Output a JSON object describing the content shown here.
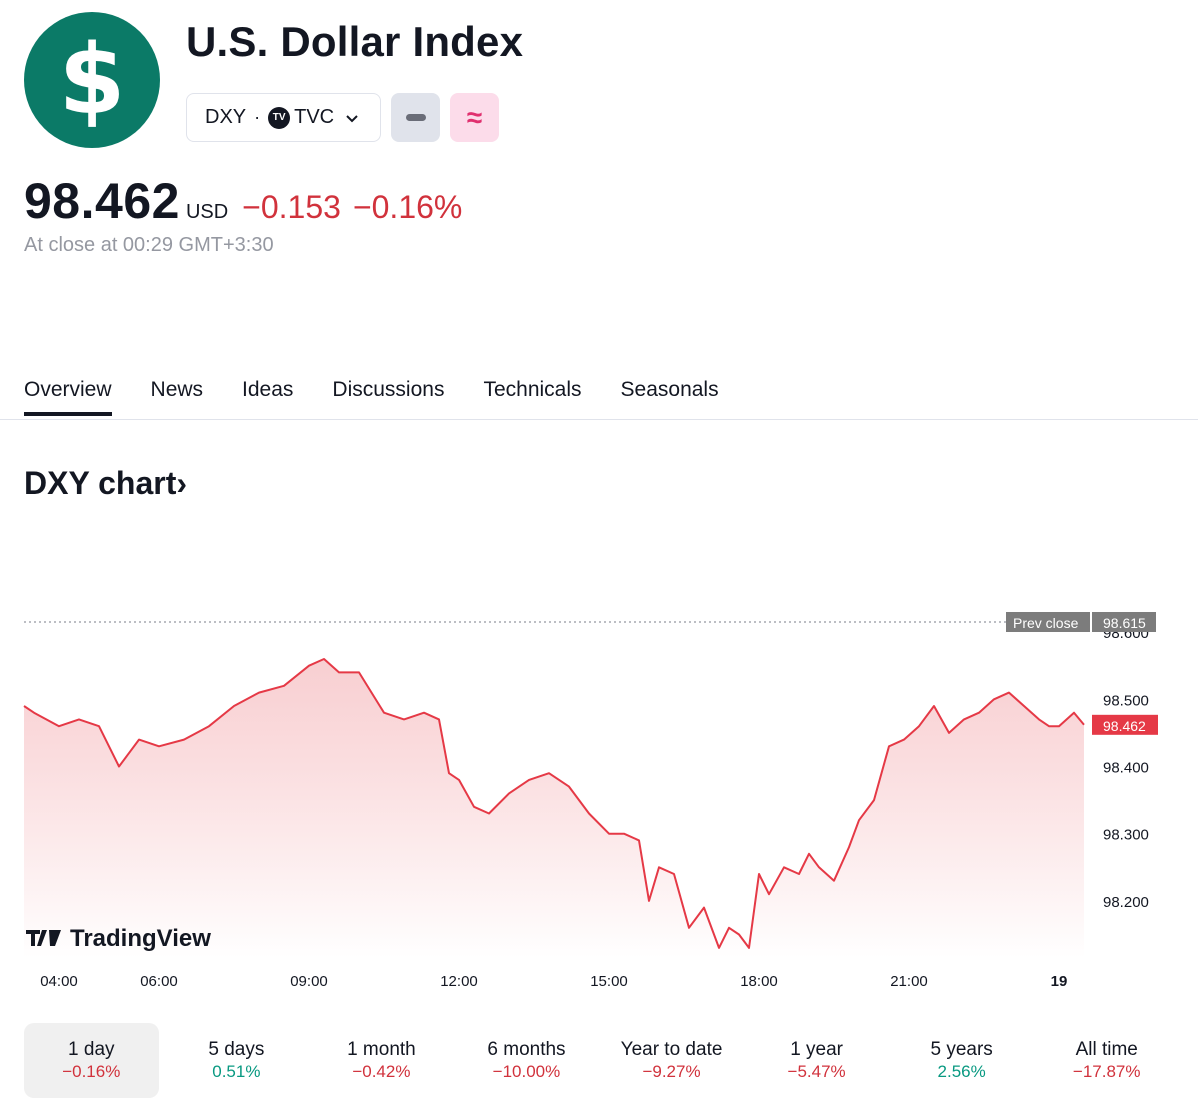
{
  "header": {
    "logo_symbol": "$",
    "logo_color": "#0b7a67",
    "title": "U.S. Dollar Index",
    "symbol": "DXY",
    "separator": "·",
    "exchange_badge": "TV",
    "exchange": "TVC",
    "dropdown_icon": "chevron-down-icon",
    "badge_grey_icon": "minus-icon",
    "badge_pink_icon": "approx-icon",
    "badge_pink_glyph": "≈"
  },
  "quote": {
    "price": "98.462",
    "currency": "USD",
    "change": "−0.153",
    "change_percent": "−0.16%",
    "close_note": "At close at 00:29 GMT+3:30"
  },
  "tabs": [
    "Overview",
    "News",
    "Ideas",
    "Discussions",
    "Technicals",
    "Seasonals"
  ],
  "active_tab": "Overview",
  "chart_heading": "DXY chart",
  "chart_heading_arrow": "›",
  "watermark": "TradingView",
  "colors": {
    "negative": "#d1323c",
    "positive": "#089981",
    "line": "#e53946",
    "fill_top": "#f7c6c9",
    "fill_bottom": "#ffffff"
  },
  "chart_data": {
    "type": "area",
    "title": "DXY chart",
    "xlabel": "",
    "ylabel": "",
    "x_ticks": [
      "04:00",
      "06:00",
      "09:00",
      "12:00",
      "15:00",
      "18:00",
      "21:00",
      "19"
    ],
    "y_ticks": [
      98.2,
      98.3,
      98.4,
      98.5,
      98.6
    ],
    "y_tick_labels": [
      "98.200",
      "98.300",
      "98.400",
      "98.500",
      "98.600"
    ],
    "ylim": [
      98.115,
      98.615
    ],
    "prev_close": {
      "label": "Prev close",
      "value": "98.615"
    },
    "last_value": "98.462",
    "x_hours": [
      3.3,
      3.5,
      4.0,
      4.4,
      4.8,
      5.2,
      5.6,
      6.0,
      6.5,
      7.0,
      7.5,
      8.0,
      8.5,
      9.0,
      9.3,
      9.6,
      10.0,
      10.5,
      10.9,
      11.3,
      11.6,
      11.8,
      12.0,
      12.3,
      12.6,
      13.0,
      13.4,
      13.8,
      14.2,
      14.6,
      15.0,
      15.3,
      15.6,
      15.8,
      16.0,
      16.3,
      16.6,
      16.9,
      17.2,
      17.4,
      17.6,
      17.8,
      18.0,
      18.2,
      18.5,
      18.8,
      19.0,
      19.2,
      19.5,
      19.8,
      20.0,
      20.3,
      20.6,
      20.9,
      21.2,
      21.5,
      21.8,
      22.1,
      22.4,
      22.7,
      23.0,
      23.3,
      23.6,
      23.8,
      24.0,
      24.3,
      24.5
    ],
    "values": [
      98.49,
      98.48,
      98.46,
      98.47,
      98.46,
      98.4,
      98.44,
      98.43,
      98.44,
      98.46,
      98.49,
      98.51,
      98.52,
      98.55,
      98.56,
      98.54,
      98.54,
      98.48,
      98.47,
      98.48,
      98.47,
      98.39,
      98.38,
      98.34,
      98.33,
      98.36,
      98.38,
      98.39,
      98.37,
      98.33,
      98.3,
      98.3,
      98.29,
      98.2,
      98.25,
      98.24,
      98.16,
      98.19,
      98.13,
      98.16,
      98.15,
      98.13,
      98.24,
      98.21,
      98.25,
      98.24,
      98.27,
      98.25,
      98.23,
      98.28,
      98.32,
      98.35,
      98.43,
      98.44,
      98.46,
      98.49,
      98.45,
      98.47,
      98.48,
      98.5,
      98.51,
      98.49,
      98.47,
      98.46,
      98.46,
      98.48,
      98.462
    ]
  },
  "ranges": [
    {
      "label": "1 day",
      "value": "−0.16%",
      "dir": "neg"
    },
    {
      "label": "5 days",
      "value": "0.51%",
      "dir": "pos"
    },
    {
      "label": "1 month",
      "value": "−0.42%",
      "dir": "neg"
    },
    {
      "label": "6 months",
      "value": "−10.00%",
      "dir": "neg"
    },
    {
      "label": "Year to date",
      "value": "−9.27%",
      "dir": "neg"
    },
    {
      "label": "1 year",
      "value": "−5.47%",
      "dir": "neg"
    },
    {
      "label": "5 years",
      "value": "2.56%",
      "dir": "pos"
    },
    {
      "label": "All time",
      "value": "−17.87%",
      "dir": "neg"
    }
  ],
  "active_range": "1 day"
}
